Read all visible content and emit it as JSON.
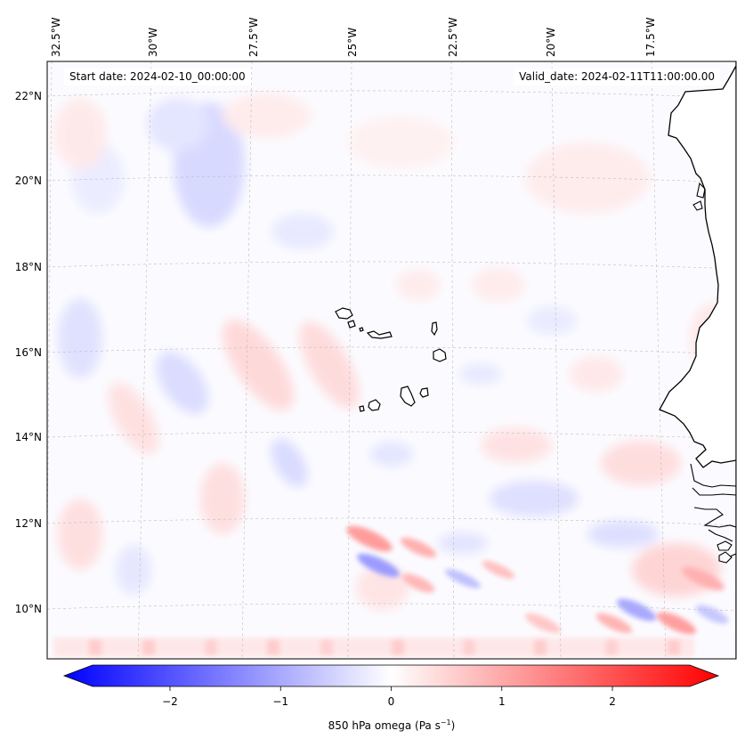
{
  "header": {
    "start_date": "Start date: 2024-02-10_00:00:00",
    "valid_date": "Valid_date: 2024-02-11T11:00:00.00"
  },
  "map": {
    "lon_labels": [
      "32.5°W",
      "30°W",
      "27.5°W",
      "25°W",
      "22.5°W",
      "20°W",
      "17.5°W"
    ],
    "lat_labels": [
      "22°N",
      "20°N",
      "18°N",
      "16°N",
      "14°N",
      "12°N",
      "10°N"
    ],
    "islands": [
      "Santo Antão",
      "São Vicente",
      "São Nicolau",
      "Sal",
      "Boa Vista",
      "Maio",
      "Santiago",
      "Fogo",
      "Brava"
    ]
  },
  "colorbar": {
    "ticks": [
      "−2",
      "−1",
      "0",
      "1",
      "2"
    ],
    "min": -2.7,
    "max": 2.7,
    "label": "850 hPa omega (Pa s",
    "label_sup": "−1",
    "label_end": ")",
    "colors": {
      "negative": "#0000ff",
      "zero": "#ffffff",
      "positive": "#ff0000"
    }
  }
}
